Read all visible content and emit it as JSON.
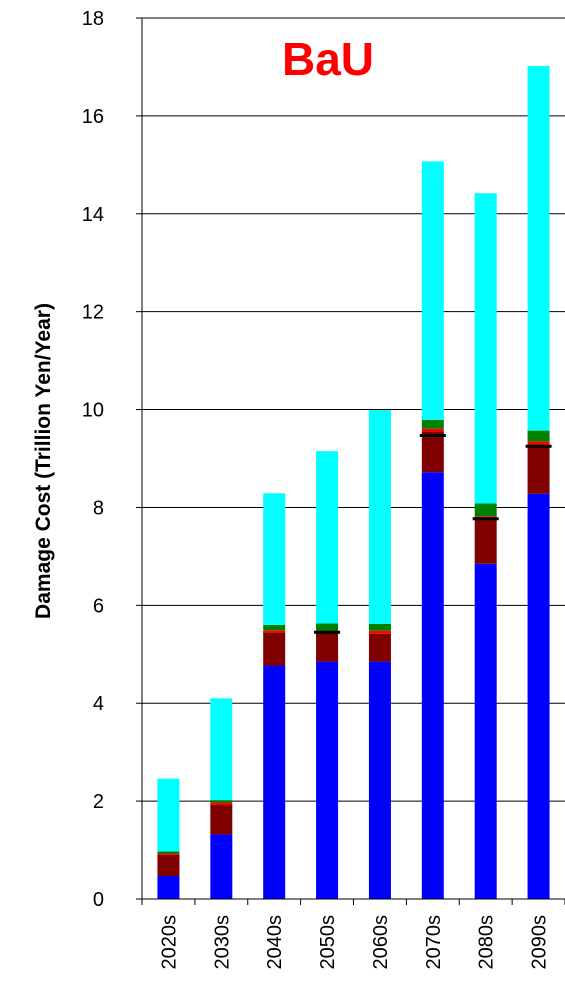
{
  "chart_data": {
    "type": "bar",
    "stacked": true,
    "title": "BaU",
    "title_color": "#ff0000",
    "ylabel_main": "Damage Cost",
    "ylabel_unit": " (Trillion Yen/Year)",
    "ylim": [
      0,
      18
    ],
    "yticks": [
      0,
      2,
      4,
      6,
      8,
      10,
      12,
      14,
      16,
      18
    ],
    "grid": "horizontal",
    "categories": [
      "2020s",
      "2030s",
      "2040s",
      "2050s",
      "2060s",
      "2070s",
      "2080s",
      "2090s"
    ],
    "series": [
      {
        "color": "#0000ff",
        "values": [
          0.47,
          1.32,
          4.77,
          4.85,
          4.85,
          8.72,
          6.85,
          8.28
        ]
      },
      {
        "color": "#800000",
        "values": [
          0.43,
          0.6,
          0.68,
          0.58,
          0.57,
          0.83,
          0.92,
          0.95
        ]
      },
      {
        "color": "#ff0000",
        "values": [
          0.03,
          0.05,
          0.04,
          0.04,
          0.06,
          0.06,
          0.05,
          0.12
        ]
      },
      {
        "color": "#008000",
        "values": [
          0.04,
          0.05,
          0.11,
          0.16,
          0.14,
          0.18,
          0.26,
          0.22
        ]
      },
      {
        "color": "#00ffff",
        "values": [
          1.49,
          2.08,
          2.69,
          3.52,
          4.37,
          5.28,
          6.34,
          7.45
        ]
      }
    ],
    "markers": {
      "color": "#000000",
      "values": [
        null,
        null,
        null,
        5.45,
        null,
        9.47,
        7.77,
        9.25
      ]
    }
  }
}
